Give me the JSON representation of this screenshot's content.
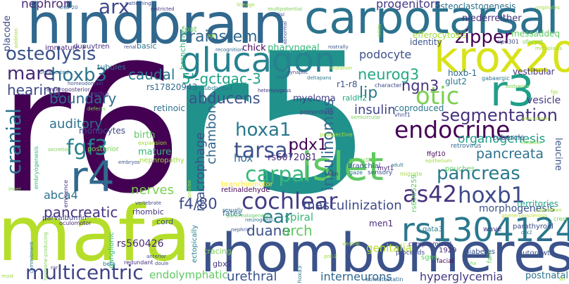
{
  "words": [
    {
      "text": "r6",
      "color": "#440154"
    },
    {
      "text": "r5",
      "color": "#21918c"
    },
    {
      "text": "mafa",
      "color": "#b5de2b"
    },
    {
      "text": "hindbrain",
      "color": "#31688e"
    },
    {
      "text": "carpotarsal",
      "color": "#2c728e"
    },
    {
      "text": "rhombomeres",
      "color": "#3b528b"
    },
    {
      "text": "krox20",
      "color": "#d8e219"
    },
    {
      "text": "glucagon",
      "color": "#26828e"
    },
    {
      "text": "islet",
      "color": "#5ec962"
    },
    {
      "text": "r3",
      "color": "#1f9e89"
    },
    {
      "text": "r4",
      "color": "#31688e"
    },
    {
      "text": "rs13041247",
      "color": "#2a788e"
    },
    {
      "text": "segmentation",
      "color": "#46327e"
    },
    {
      "text": "endocrine",
      "color": "#440154"
    },
    {
      "text": "osteolysis",
      "color": "#3b528b"
    },
    {
      "text": "hoxb3",
      "color": "#2c728e"
    },
    {
      "text": "mare",
      "color": "#482878"
    },
    {
      "text": "multicentric",
      "color": "#414487"
    },
    {
      "text": "pancreas",
      "color": "#2a788e"
    },
    {
      "text": "as42",
      "color": "#46327e"
    },
    {
      "text": "hoxb1",
      "color": "#3e4a89"
    },
    {
      "text": "cochlear",
      "color": "#433e85"
    },
    {
      "text": "fgf3",
      "color": "#26828e"
    },
    {
      "text": "otic",
      "color": "#7ad151"
    },
    {
      "text": "carpal",
      "color": "#35b779"
    },
    {
      "text": "tarsal",
      "color": "#3b528b"
    },
    {
      "text": "hoxa1",
      "color": "#2a788e"
    },
    {
      "text": "cranial",
      "color": "#2c728e"
    },
    {
      "text": "zipper",
      "color": "#440154"
    },
    {
      "text": "brainstem",
      "color": "#31688e"
    },
    {
      "text": "arx",
      "color": "#3e4a89"
    },
    {
      "text": "nephron",
      "color": "#482878"
    },
    {
      "text": "progenitors",
      "color": "#443983"
    },
    {
      "text": "podocyte",
      "color": "#3b528b"
    },
    {
      "text": "5'-gctgac-3",
      "color": "#1fa187"
    },
    {
      "text": "caudal",
      "color": "#2a788e"
    },
    {
      "text": "hearing",
      "color": "#3e4a89"
    },
    {
      "text": "boundary",
      "color": "#31688e"
    },
    {
      "text": "auditory",
      "color": "#2c728e"
    },
    {
      "text": "abducens",
      "color": "#3b528b"
    },
    {
      "text": "pdx1",
      "color": "#440154"
    },
    {
      "text": "neurog3",
      "color": "#22a884"
    },
    {
      "text": "ngn3",
      "color": "#46327e"
    },
    {
      "text": "lip",
      "color": "#2a788e"
    },
    {
      "text": "insulin",
      "color": "#414487"
    },
    {
      "text": "insulinomas",
      "color": "#31688e"
    },
    {
      "text": "masculinization",
      "color": "#3e4a89"
    },
    {
      "text": "pancreata",
      "color": "#2c728e"
    },
    {
      "text": "organogenesis",
      "color": "#1f9e89"
    },
    {
      "text": "ear",
      "color": "#287c8e"
    },
    {
      "text": "duane",
      "color": "#3b528b"
    },
    {
      "text": "arch",
      "color": "#5ec962"
    },
    {
      "text": "spiral",
      "color": "#35b779"
    },
    {
      "text": "nerves",
      "color": "#7ad151"
    },
    {
      "text": "f4/80",
      "color": "#3e4a89"
    },
    {
      "text": "macrophage",
      "color": "#3b528b"
    },
    {
      "text": "chambon",
      "color": "#31688e"
    },
    {
      "text": "pancreatic",
      "color": "#46327e"
    },
    {
      "text": "abca4",
      "color": "#2c728e"
    },
    {
      "text": "urethral",
      "color": "#3b528b"
    },
    {
      "text": "interneurons",
      "color": "#31688e"
    },
    {
      "text": "hyperglycemia",
      "color": "#443983"
    },
    {
      "text": "endolymphatic",
      "color": "#5ec962"
    },
    {
      "text": "genitalia",
      "color": "#b5de2b"
    },
    {
      "text": "morphogenesis",
      "color": "#3b528b"
    },
    {
      "text": "rs560426",
      "color": "#482878"
    },
    {
      "text": "osteoclastogenesis",
      "color": "#2c728e"
    },
    {
      "text": "niederreither",
      "color": "#46327e"
    },
    {
      "text": "messaddeq",
      "color": "#5ec962"
    },
    {
      "text": "efferocytosis",
      "color": "#a0da39"
    },
    {
      "text": "identity",
      "color": "#3b528b"
    },
    {
      "text": "chick",
      "color": "#440154"
    },
    {
      "text": "pharyngeal",
      "color": "#35b779"
    },
    {
      "text": "myeloma",
      "color": "#433e85"
    },
    {
      "text": "hox",
      "color": "#31688e"
    },
    {
      "text": "rs6072081",
      "color": "#482878"
    },
    {
      "text": "rs17820943",
      "color": "#31688e"
    },
    {
      "text": "retinoic",
      "color": "#2c728e"
    },
    {
      "text": "monocytes",
      "color": "#3e4a89"
    },
    {
      "text": "birth",
      "color": "#5ec962"
    },
    {
      "text": "mature",
      "color": "#35b779"
    },
    {
      "text": "coproduced",
      "color": "#2a788e"
    },
    {
      "text": "vesicle",
      "color": "#443983"
    },
    {
      "text": "leucine",
      "color": "#3b528b"
    },
    {
      "text": "territories",
      "color": "#1fa187"
    },
    {
      "text": "men1",
      "color": "#482878"
    },
    {
      "text": "vestibular",
      "color": "#46327e"
    },
    {
      "text": "glut2",
      "color": "#2a788e"
    },
    {
      "text": "hoxb-1",
      "color": "#31688e"
    },
    {
      "text": "r1-r8",
      "color": "#3b528b"
    },
    {
      "text": "raldh2",
      "color": "#22a884"
    },
    {
      "text": "tubules",
      "color": "#2c728e"
    },
    {
      "text": "placode",
      "color": "#3e4a89"
    },
    {
      "text": "dupuytren",
      "color": "#46327e"
    },
    {
      "text": "immature",
      "color": "#482878"
    },
    {
      "text": "basic",
      "color": "#2a788e"
    },
    {
      "text": "foot",
      "color": "#5ec962"
    },
    {
      "text": "branching",
      "color": "#35b779"
    },
    {
      "text": "cord",
      "color": "#3b528b"
    },
    {
      "text": "rhombic",
      "color": "#46327e"
    },
    {
      "text": "fates",
      "color": "#2c728e"
    },
    {
      "text": "tracing",
      "color": "#7ad151"
    },
    {
      "text": "branchiomotor",
      "color": "#fde725"
    },
    {
      "text": "retinaldehyde",
      "color": "#440154"
    },
    {
      "text": "branchial",
      "color": "#3b528b"
    },
    {
      "text": "gbx2",
      "color": "#46327e"
    },
    {
      "text": "ganglionic",
      "color": "#35b779"
    },
    {
      "text": "parvalbumin",
      "color": "#414487"
    },
    {
      "text": "ectopically",
      "color": "#26828e"
    },
    {
      "text": "posterior",
      "color": "#7ad151"
    },
    {
      "text": "nephropathy",
      "color": "#a0da39"
    },
    {
      "text": "pouches",
      "color": "#5ec962"
    },
    {
      "text": "myt1",
      "color": "#482878"
    },
    {
      "text": "tubercle",
      "color": "#3b528b"
    },
    {
      "text": "ffgf10",
      "color": "#440154"
    },
    {
      "text": "gata3",
      "color": "#2a788e"
    },
    {
      "text": "sgns",
      "color": "#5ec962"
    },
    {
      "text": "postnatal",
      "color": "#2c728e"
    },
    {
      "text": "parathyroid",
      "color": "#3e4a89"
    },
    {
      "text": "wave",
      "color": "#46327e"
    },
    {
      "text": "diabetes",
      "color": "#3b528b"
    },
    {
      "text": "rs6065259",
      "color": "#5ec962"
    },
    {
      "text": "1929",
      "color": "#482878"
    },
    {
      "text": "proceeds",
      "color": "#3e4a89"
    },
    {
      "text": "compromised",
      "color": "#433e85"
    },
    {
      "text": "retrovirus",
      "color": "#31688e"
    },
    {
      "text": "facial",
      "color": "#440154"
    },
    {
      "text": "sensory",
      "color": "#3b528b"
    },
    {
      "text": "gaze",
      "color": "#2c728e"
    },
    {
      "text": "migrate",
      "color": "#a0da39"
    },
    {
      "text": "vcn",
      "color": "#482878"
    },
    {
      "text": "retraction",
      "color": "#7ad151"
    },
    {
      "text": "primordium",
      "color": "#443983"
    },
    {
      "text": "prospective",
      "color": "#a0da39"
    },
    {
      "text": "semicircular",
      "color": "#7ad151"
    },
    {
      "text": "vhnf1",
      "color": "#3b528b"
    },
    {
      "text": "adult",
      "color": "#2c728e"
    },
    {
      "text": "heterozygous",
      "color": "#46327e"
    },
    {
      "text": "character",
      "color": "#3e4a89"
    },
    {
      "text": "recognition",
      "color": "#31688e"
    },
    {
      "text": "subdivided",
      "color": "#2a788e"
    },
    {
      "text": "homeodomain",
      "color": "#3b528b"
    },
    {
      "text": "anteroposterior",
      "color": "#46327e"
    },
    {
      "text": "rectus",
      "color": "#3e4a89"
    },
    {
      "text": "unexpected",
      "color": "#2c728e"
    },
    {
      "text": "expansion",
      "color": "#a0da39"
    },
    {
      "text": "embryos",
      "color": "#3b528b"
    },
    {
      "text": "embryogenesis",
      "color": "#35b779"
    },
    {
      "text": "secretion",
      "color": "#7ad151"
    },
    {
      "text": "oculomotor",
      "color": "#482878"
    },
    {
      "text": "eminence",
      "color": "#46327e"
    },
    {
      "text": "vertebrate",
      "color": "#3e4a89"
    },
    {
      "text": "sexually",
      "color": "#31688e"
    },
    {
      "text": "pancreatogenesis",
      "color": "#5ec962"
    },
    {
      "text": "neurogenin3",
      "color": "#2c728e"
    },
    {
      "text": "nephrin",
      "color": "#3b528b"
    },
    {
      "text": "redundant",
      "color": "#46327e"
    },
    {
      "text": "beta",
      "color": "#2a788e"
    },
    {
      "text": "anterior",
      "color": "#3e4a89"
    },
    {
      "text": "doule",
      "color": "#3b528b"
    },
    {
      "text": "commitment",
      "color": "#2c728e"
    },
    {
      "text": "hormone-producing",
      "color": "#7ad151"
    },
    {
      "text": "precise",
      "color": "#a0da39"
    },
    {
      "text": "glomerulosclerosis",
      "color": "#b5de2b"
    },
    {
      "text": "epithelium",
      "color": "#a0da39"
    },
    {
      "text": "gabaergic",
      "color": "#2c728e"
    },
    {
      "text": "bodywide",
      "color": "#7ad151"
    },
    {
      "text": "outgrowth",
      "color": "#3b528b"
    },
    {
      "text": "fails",
      "color": "#5ec962"
    },
    {
      "text": "somatostatin",
      "color": "#31688e"
    },
    {
      "text": "hoxa3",
      "color": "#2a788e"
    },
    {
      "text": "ripe301",
      "color": "#3e4a89"
    },
    {
      "text": "ofocyst",
      "color": "#7ad151"
    },
    {
      "text": "originates",
      "color": "#a0da39"
    },
    {
      "text": "krox-20",
      "color": "#31688e"
    },
    {
      "text": "patterning",
      "color": "#3e4a89"
    },
    {
      "text": "restricted",
      "color": "#46327e"
    },
    {
      "text": "lineage",
      "color": "#a0da39"
    },
    {
      "text": "multipotential",
      "color": "#7ad151"
    },
    {
      "text": "disl",
      "color": "#3b528b"
    },
    {
      "text": "renal",
      "color": "#3e4a89"
    },
    {
      "text": "age",
      "color": "#a0da39"
    },
    {
      "text": "abnormal",
      "color": "#3b528b"
    },
    {
      "text": "islets",
      "color": "#7ad151"
    },
    {
      "text": "rostrally",
      "color": "#3b528b"
    },
    {
      "text": "mutation",
      "color": "#a0da39"
    },
    {
      "text": "deltapans",
      "color": "#2a788e"
    },
    {
      "text": "synaptic",
      "color": "#3e4a89"
    },
    {
      "text": "rar",
      "color": "#46327e"
    },
    {
      "text": "inner",
      "color": "#7ad151"
    },
    {
      "text": "fgs",
      "color": "#a0da39"
    },
    {
      "text": "defects",
      "color": "#7ad151"
    },
    {
      "text": "population",
      "color": "#a0da39"
    },
    {
      "text": "crest",
      "color": "#7ad151"
    },
    {
      "text": "otx2",
      "color": "#2a788e"
    },
    {
      "text": "onset",
      "color": "#3b528b"
    },
    {
      "text": "pnt-2",
      "color": "#a0da39"
    },
    {
      "text": "ihx",
      "color": "#7ad151"
    },
    {
      "text": "ventral",
      "color": "#a0da39"
    },
    {
      "text": "metaplasia",
      "color": "#a0da39"
    },
    {
      "text": "inhibitor",
      "color": "#7ad151"
    },
    {
      "text": "knockdown",
      "color": "#a0da39"
    },
    {
      "text": "addition",
      "color": "#a0da39"
    },
    {
      "text": "most",
      "color": "#a0da39"
    },
    {
      "text": "sh",
      "color": "#a0da39"
    }
  ]
}
